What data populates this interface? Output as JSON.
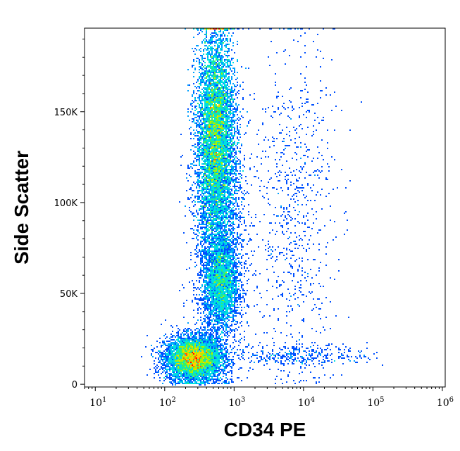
{
  "chart_data": {
    "type": "scatter",
    "subtype": "flow-cytometry density dot plot",
    "title": "",
    "xlabel": "CD34 PE",
    "ylabel": "Side Scatter",
    "x_scale": "log",
    "xlim": [
      7,
      1100000
    ],
    "ylim": [
      -1500,
      196000
    ],
    "grid": false,
    "legend": "none",
    "x_ticks": [
      {
        "value": 10,
        "base": "10",
        "exp": "1"
      },
      {
        "value": 100,
        "base": "10",
        "exp": "2"
      },
      {
        "value": 1000,
        "base": "10",
        "exp": "3"
      },
      {
        "value": 10000,
        "base": "10",
        "exp": "4"
      },
      {
        "value": 100000,
        "base": "10",
        "exp": "5"
      },
      {
        "value": 1000000,
        "base": "10",
        "exp": "6"
      }
    ],
    "y_ticks": [
      {
        "value": 0,
        "label": "0"
      },
      {
        "value": 50000,
        "label": "50K"
      },
      {
        "value": 100000,
        "label": "100K"
      },
      {
        "value": 150000,
        "label": "150K"
      }
    ],
    "density_colormap": [
      "#0000ff",
      "#0050ff",
      "#00a0ff",
      "#00e0e0",
      "#30f070",
      "#b0f000",
      "#ffd000",
      "#ff6000",
      "#ff0000"
    ],
    "populations": [
      {
        "name": "lymphocytes",
        "x_center": 260,
        "y_center": 14000,
        "x_spread_decades": 0.2,
        "y_spread": 6000,
        "weight": 6000,
        "density": "high"
      },
      {
        "name": "monocytes",
        "x_center": 650,
        "y_center": 55000,
        "x_spread_decades": 0.12,
        "y_spread": 12000,
        "weight": 2600,
        "density": "medium"
      },
      {
        "name": "granulocytes",
        "x_center": 540,
        "y_center": 140000,
        "x_spread_decades": 0.13,
        "y_spread": 28000,
        "weight": 9000,
        "density": "high"
      },
      {
        "name": "stream",
        "x_center": 600,
        "y_center": 90000,
        "x_spread_decades": 0.18,
        "y_spread": 40000,
        "weight": 3500,
        "density": "low"
      },
      {
        "name": "CD34-high scatter",
        "x_center": 7000,
        "y_center": 95000,
        "x_spread_decades": 0.3,
        "y_spread": 50000,
        "weight": 800,
        "density": "sparse"
      },
      {
        "name": "low-SSC tail",
        "x_center": 9000,
        "y_center": 16000,
        "x_spread_decades": 0.5,
        "y_spread": 3000,
        "weight": 350,
        "density": "sparse"
      }
    ]
  }
}
